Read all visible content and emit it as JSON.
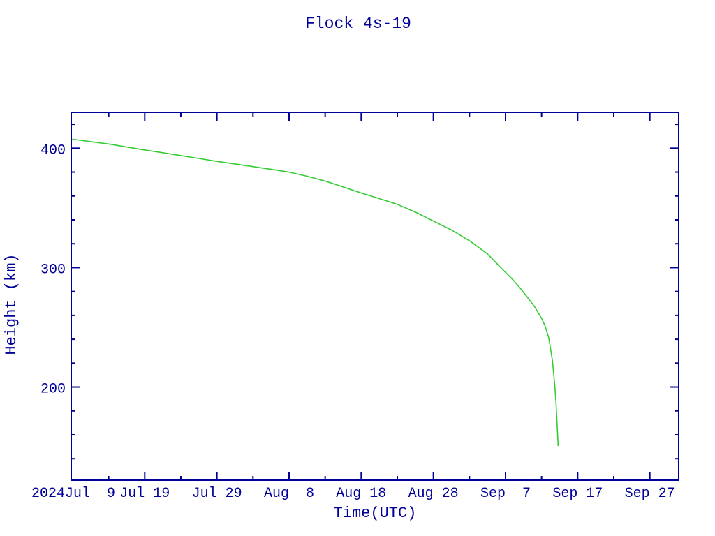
{
  "window": {
    "title": "Flock 4s-19"
  },
  "colors": {
    "axis": "#000099",
    "text": "#000099",
    "curve": "#33cc33",
    "background": "#ffffff"
  },
  "chart_data": {
    "type": "line",
    "title": "Flock 4s-19",
    "xlabel": "Time(UTC)",
    "ylabel": "Height (km)",
    "year_label": "2024",
    "x_unit": "days since 2024 Jul 9 (UTC)",
    "xlim": [
      -0.19,
      84.0
    ],
    "ylim": [
      122,
      430
    ],
    "grid": false,
    "legend": "none",
    "x_major_ticks": [
      {
        "d": 0,
        "label": "Jul  9"
      },
      {
        "d": 10,
        "label": "Jul 19"
      },
      {
        "d": 20,
        "label": "Jul 29"
      },
      {
        "d": 30,
        "label": "Aug  8"
      },
      {
        "d": 40,
        "label": "Aug 18"
      },
      {
        "d": 50,
        "label": "Aug 28"
      },
      {
        "d": 60,
        "label": "Sep  7"
      },
      {
        "d": 70,
        "label": "Sep 17"
      },
      {
        "d": 80,
        "label": "Sep 27"
      }
    ],
    "x_minor_ticks": [
      5,
      15,
      25,
      35,
      45,
      55,
      65,
      75
    ],
    "y_major_ticks": [
      200,
      300,
      400
    ],
    "y_minor_ticks": [
      140,
      160,
      180,
      220,
      240,
      260,
      280,
      320,
      340,
      360,
      380,
      420
    ],
    "series": [
      {
        "name": "Flock 4s-19 height",
        "color": "#33cc33",
        "points": [
          [
            0,
            407.5
          ],
          [
            2.5,
            405.5
          ],
          [
            5,
            403.5
          ],
          [
            7.5,
            401.0
          ],
          [
            10,
            398.5
          ],
          [
            12.5,
            396.2
          ],
          [
            15,
            393.8
          ],
          [
            17.5,
            391.4
          ],
          [
            20,
            389.0
          ],
          [
            22.5,
            386.8
          ],
          [
            25,
            384.6
          ],
          [
            27.5,
            382.3
          ],
          [
            30,
            380.0
          ],
          [
            32.5,
            376.5
          ],
          [
            35,
            372.5
          ],
          [
            37.5,
            367.5
          ],
          [
            40,
            362.5
          ],
          [
            42.5,
            357.8
          ],
          [
            45,
            353.0
          ],
          [
            47.5,
            346.5
          ],
          [
            50,
            339.0
          ],
          [
            52.5,
            331.5
          ],
          [
            55,
            322.5
          ],
          [
            57.5,
            311.5
          ],
          [
            60,
            296.0
          ],
          [
            61,
            290.0
          ],
          [
            62,
            283.0
          ],
          [
            63,
            275.5
          ],
          [
            64,
            267.5
          ],
          [
            65,
            257.5
          ],
          [
            65.5,
            251.0
          ],
          [
            66,
            241.0
          ],
          [
            66.5,
            222.0
          ],
          [
            66.8,
            203.0
          ],
          [
            67.0,
            187.0
          ],
          [
            67.15,
            168.0
          ],
          [
            67.3,
            151.0
          ]
        ]
      }
    ]
  }
}
